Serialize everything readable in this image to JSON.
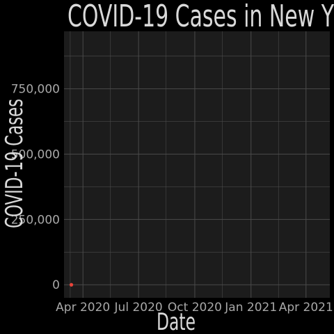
{
  "chart_data": {
    "type": "scatter",
    "title": "COVID-19 Cases in New Y",
    "xlabel": "Date",
    "ylabel": "COVID-19 Cases",
    "ylim": [
      -50000,
      970000
    ],
    "xlim": [
      "2020-03-01",
      "2021-05-10"
    ],
    "y_ticks": [
      0,
      250000,
      500000,
      750000
    ],
    "y_tick_labels": [
      "0",
      "250,000",
      "500,000",
      "750,000"
    ],
    "x_ticks": [
      "2020-04-01",
      "2020-07-01",
      "2020-10-01",
      "2021-01-01",
      "2021-04-01"
    ],
    "x_tick_labels": [
      "Apr 2020",
      "Jul 2020",
      "Oct 2020",
      "Jan 2021",
      "Apr 2021"
    ],
    "grid": true,
    "series": [
      {
        "color": "#e8443a",
        "points": [
          {
            "x": "2020-03-13",
            "y": 0
          }
        ]
      }
    ],
    "colors": {
      "background": "#000000",
      "panel": "#1c1c1c",
      "grid": "#4a4a4a",
      "text": "#d9d9d9",
      "tick_text": "#a8a8a8",
      "point": "#e8443a"
    }
  }
}
